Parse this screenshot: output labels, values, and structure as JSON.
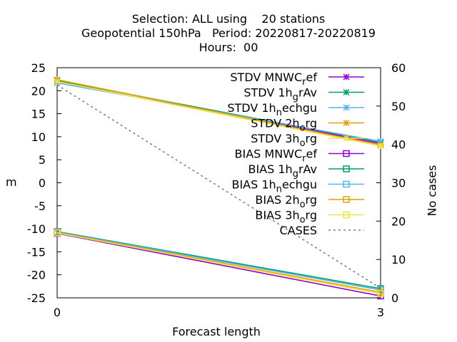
{
  "title": {
    "line1": "Selection: ALL using    20 stations",
    "line2": "Geopotential 150hPa   Period: 20220817-20220819",
    "line3": "Hours:  00"
  },
  "chart_data": {
    "type": "line",
    "x": [
      0,
      3
    ],
    "xlabel": "Forecast length",
    "ylabel": "m",
    "y2label": "No cases",
    "xlim": [
      0,
      3
    ],
    "ylim": [
      -25,
      25
    ],
    "y2lim": [
      0,
      60
    ],
    "xticks": [
      "0",
      "3"
    ],
    "yticks": [
      "25",
      "20",
      "15",
      "10",
      "5",
      "0",
      "-5",
      "-10",
      "-15",
      "-20",
      "-25"
    ],
    "y2ticks": [
      "60",
      "50",
      "40",
      "30",
      "20",
      "10",
      "0"
    ],
    "grid": false,
    "legend_position": "top-right",
    "series": [
      {
        "name": "STDV MNWC_ref",
        "label_main": "STDV MNWC",
        "label_sub": "r",
        "label_tail": "ef",
        "axis": "y",
        "values": [
          22.3,
          8.5
        ],
        "color": "#9400d3",
        "marker": "x-star"
      },
      {
        "name": "STDV 1h_grAv",
        "label_main": "STDV 1h",
        "label_sub": "g",
        "label_tail": "rAv",
        "axis": "y",
        "values": [
          22.2,
          8.8
        ],
        "color": "#009e73",
        "marker": "x-star"
      },
      {
        "name": "STDV 1h_nechgu",
        "label_main": "STDV 1h",
        "label_sub": "n",
        "label_tail": "echgu",
        "axis": "y",
        "values": [
          21.7,
          9.0
        ],
        "color": "#56b4e9",
        "marker": "x-star"
      },
      {
        "name": "STDV 2h_org",
        "label_main": "STDV 2h",
        "label_sub": "o",
        "label_tail": "rg",
        "axis": "y",
        "values": [
          22.4,
          8.2
        ],
        "color": "#e69f00",
        "marker": "x-star"
      },
      {
        "name": "STDV 3h_org",
        "label_main": "STDV 3h",
        "label_sub": "o",
        "label_tail": "rg",
        "axis": "y",
        "values": [
          22.0,
          8.0
        ],
        "color": "#f0e442",
        "marker": "x-star"
      },
      {
        "name": "BIAS MNWC_ref",
        "label_main": "BIAS MNWC",
        "label_sub": "r",
        "label_tail": "ef",
        "axis": "y",
        "values": [
          -11.0,
          -24.6
        ],
        "color": "#9400d3",
        "marker": "square"
      },
      {
        "name": "BIAS 1h_grAv",
        "label_main": "BIAS 1h",
        "label_sub": "g",
        "label_tail": "rAv",
        "axis": "y",
        "values": [
          -10.6,
          -23.0
        ],
        "color": "#009e73",
        "marker": "square"
      },
      {
        "name": "BIAS 1h_nechgu",
        "label_main": "BIAS 1h",
        "label_sub": "n",
        "label_tail": "echgu",
        "axis": "y",
        "values": [
          -10.7,
          -23.3
        ],
        "color": "#56b4e9",
        "marker": "square"
      },
      {
        "name": "BIAS 2h_org",
        "label_main": "BIAS 2h",
        "label_sub": "o",
        "label_tail": "rg",
        "axis": "y",
        "values": [
          -10.8,
          -23.8
        ],
        "color": "#e69f00",
        "marker": "square"
      },
      {
        "name": "BIAS 3h_org",
        "label_main": "BIAS 3h",
        "label_sub": "o",
        "label_tail": "rg",
        "axis": "y",
        "values": [
          -10.9,
          -24.1
        ],
        "color": "#f0e442",
        "marker": "square"
      },
      {
        "name": "CASES",
        "label_main": "CASES",
        "label_sub": "",
        "label_tail": "",
        "axis": "y2",
        "values": [
          55.5,
          2.5
        ],
        "color": "#808080",
        "marker": "none",
        "dash": true
      }
    ]
  }
}
